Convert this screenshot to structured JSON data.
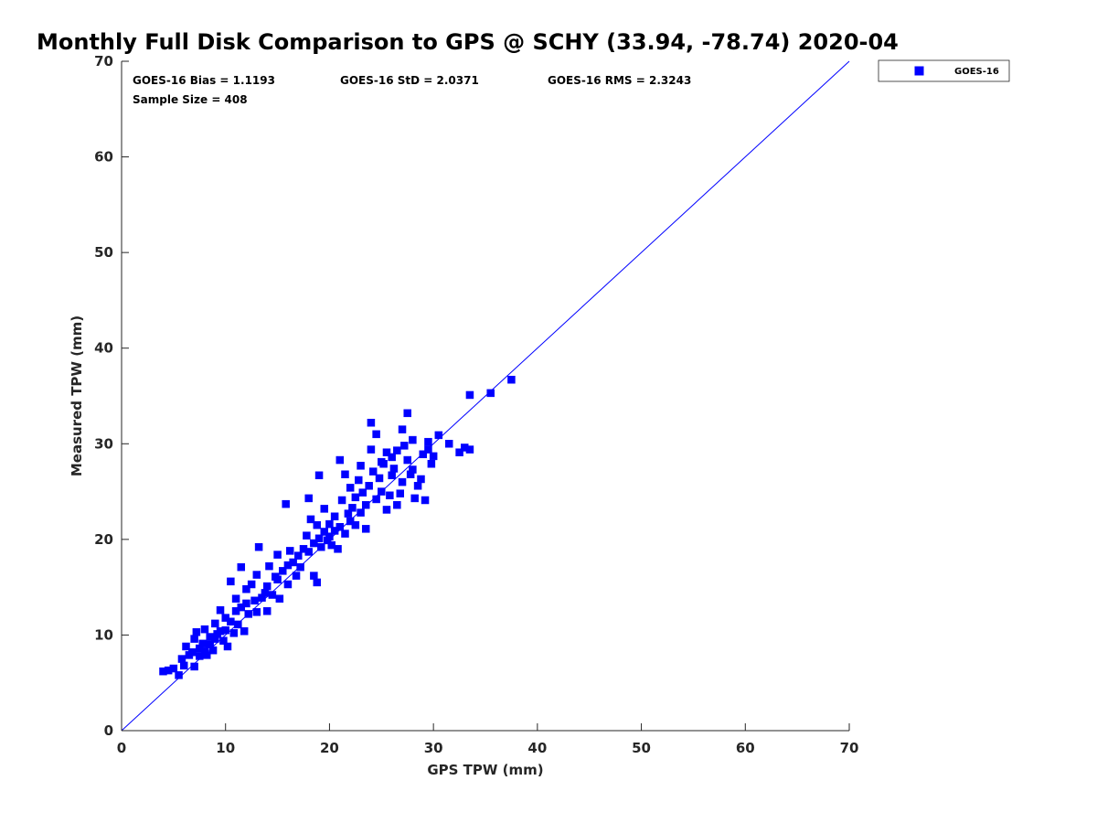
{
  "chart_data": {
    "type": "scatter",
    "title": "Monthly Full Disk Comparison to GPS @ SCHY (33.94, -78.74) 2020-04",
    "xlabel": "GPS TPW (mm)",
    "ylabel": "Measured TPW (mm)",
    "xlim": [
      0,
      70
    ],
    "ylim": [
      0,
      70
    ],
    "xticks": [
      "0",
      "10",
      "20",
      "30",
      "40",
      "50",
      "60",
      "70"
    ],
    "yticks": [
      "0",
      "10",
      "20",
      "30",
      "40",
      "50",
      "60",
      "70"
    ],
    "grid": false,
    "legend_position": "outside-top-right",
    "reference_line": "1:1",
    "stats": {
      "bias": "GOES-16 Bias = 1.1193",
      "std": "GOES-16 StD = 2.0371",
      "rms": "GOES-16 RMS = 2.3243",
      "sample_size": "Sample Size = 408"
    },
    "series": [
      {
        "name": "GOES-16",
        "color": "#0000ff",
        "marker": "square",
        "points": [
          [
            4.0,
            6.2
          ],
          [
            4.5,
            6.3
          ],
          [
            5.0,
            6.5
          ],
          [
            5.5,
            5.8
          ],
          [
            5.8,
            7.5
          ],
          [
            6.0,
            6.8
          ],
          [
            6.2,
            8.8
          ],
          [
            6.5,
            7.9
          ],
          [
            6.8,
            8.2
          ],
          [
            7.0,
            6.7
          ],
          [
            7.0,
            9.6
          ],
          [
            7.2,
            10.3
          ],
          [
            7.5,
            7.8
          ],
          [
            7.5,
            8.6
          ],
          [
            7.8,
            9.1
          ],
          [
            8.0,
            8.3
          ],
          [
            8.0,
            10.6
          ],
          [
            8.2,
            7.9
          ],
          [
            8.5,
            9.0
          ],
          [
            8.5,
            9.8
          ],
          [
            8.8,
            8.4
          ],
          [
            9.0,
            9.6
          ],
          [
            9.0,
            11.2
          ],
          [
            9.2,
            10.1
          ],
          [
            9.5,
            10.4
          ],
          [
            9.5,
            12.6
          ],
          [
            9.8,
            9.4
          ],
          [
            10.0,
            11.8
          ],
          [
            10.0,
            10.5
          ],
          [
            10.2,
            8.8
          ],
          [
            10.5,
            11.4
          ],
          [
            10.5,
            15.6
          ],
          [
            10.8,
            10.2
          ],
          [
            11.0,
            12.5
          ],
          [
            11.0,
            13.8
          ],
          [
            11.2,
            11.1
          ],
          [
            11.5,
            12.9
          ],
          [
            11.5,
            17.1
          ],
          [
            11.8,
            10.4
          ],
          [
            12.0,
            13.3
          ],
          [
            12.0,
            14.8
          ],
          [
            12.2,
            12.2
          ],
          [
            12.5,
            15.3
          ],
          [
            12.8,
            13.6
          ],
          [
            13.0,
            12.4
          ],
          [
            13.0,
            16.3
          ],
          [
            13.2,
            19.2
          ],
          [
            13.5,
            13.9
          ],
          [
            13.8,
            14.4
          ],
          [
            14.0,
            15.1
          ],
          [
            14.0,
            12.5
          ],
          [
            14.2,
            17.2
          ],
          [
            14.5,
            14.2
          ],
          [
            14.8,
            16.1
          ],
          [
            15.0,
            15.8
          ],
          [
            15.0,
            18.4
          ],
          [
            15.2,
            13.8
          ],
          [
            15.5,
            16.7
          ],
          [
            15.8,
            23.7
          ],
          [
            16.0,
            17.3
          ],
          [
            16.0,
            15.3
          ],
          [
            16.2,
            18.8
          ],
          [
            16.5,
            17.6
          ],
          [
            16.8,
            16.2
          ],
          [
            17.0,
            18.3
          ],
          [
            17.2,
            17.1
          ],
          [
            17.5,
            19.0
          ],
          [
            17.8,
            20.4
          ],
          [
            18.0,
            18.7
          ],
          [
            18.0,
            24.3
          ],
          [
            18.2,
            22.1
          ],
          [
            18.5,
            19.6
          ],
          [
            18.5,
            16.2
          ],
          [
            18.8,
            21.5
          ],
          [
            18.8,
            15.5
          ],
          [
            19.0,
            20.1
          ],
          [
            19.0,
            26.7
          ],
          [
            19.2,
            19.2
          ],
          [
            19.5,
            23.2
          ],
          [
            19.5,
            20.8
          ],
          [
            19.8,
            19.9
          ],
          [
            20.0,
            21.6
          ],
          [
            20.0,
            20.3
          ],
          [
            20.2,
            19.4
          ],
          [
            20.5,
            20.9
          ],
          [
            20.5,
            22.4
          ],
          [
            20.8,
            19.0
          ],
          [
            21.0,
            21.3
          ],
          [
            21.0,
            28.3
          ],
          [
            21.2,
            24.1
          ],
          [
            21.5,
            20.6
          ],
          [
            21.5,
            26.8
          ],
          [
            21.8,
            22.7
          ],
          [
            22.0,
            21.9
          ],
          [
            22.0,
            25.4
          ],
          [
            22.2,
            23.3
          ],
          [
            22.5,
            24.4
          ],
          [
            22.5,
            21.5
          ],
          [
            22.8,
            26.2
          ],
          [
            23.0,
            22.8
          ],
          [
            23.0,
            27.7
          ],
          [
            23.2,
            24.9
          ],
          [
            23.5,
            23.6
          ],
          [
            23.5,
            21.1
          ],
          [
            23.8,
            25.6
          ],
          [
            24.0,
            29.4
          ],
          [
            24.0,
            32.2
          ],
          [
            24.2,
            27.1
          ],
          [
            24.5,
            24.2
          ],
          [
            24.5,
            31.0
          ],
          [
            24.8,
            26.4
          ],
          [
            25.0,
            28.1
          ],
          [
            25.0,
            25.0
          ],
          [
            25.2,
            27.9
          ],
          [
            25.5,
            29.1
          ],
          [
            25.5,
            23.1
          ],
          [
            25.8,
            24.6
          ],
          [
            26.0,
            26.7
          ],
          [
            26.0,
            28.6
          ],
          [
            26.2,
            27.4
          ],
          [
            26.5,
            23.6
          ],
          [
            26.5,
            29.3
          ],
          [
            26.8,
            24.8
          ],
          [
            27.0,
            31.5
          ],
          [
            27.0,
            26.0
          ],
          [
            27.2,
            29.8
          ],
          [
            27.5,
            33.2
          ],
          [
            27.5,
            28.3
          ],
          [
            27.8,
            26.8
          ],
          [
            28.0,
            30.4
          ],
          [
            28.0,
            27.3
          ],
          [
            28.2,
            24.3
          ],
          [
            28.5,
            25.6
          ],
          [
            28.8,
            26.3
          ],
          [
            29.0,
            28.9
          ],
          [
            29.2,
            24.1
          ],
          [
            29.5,
            29.4
          ],
          [
            29.5,
            30.2
          ],
          [
            29.8,
            27.9
          ],
          [
            30.0,
            28.7
          ],
          [
            30.5,
            30.9
          ],
          [
            31.5,
            30.0
          ],
          [
            32.5,
            29.1
          ],
          [
            33.0,
            29.6
          ],
          [
            33.5,
            29.4
          ],
          [
            33.5,
            35.1
          ],
          [
            35.5,
            35.3
          ],
          [
            37.5,
            36.7
          ]
        ]
      }
    ]
  }
}
